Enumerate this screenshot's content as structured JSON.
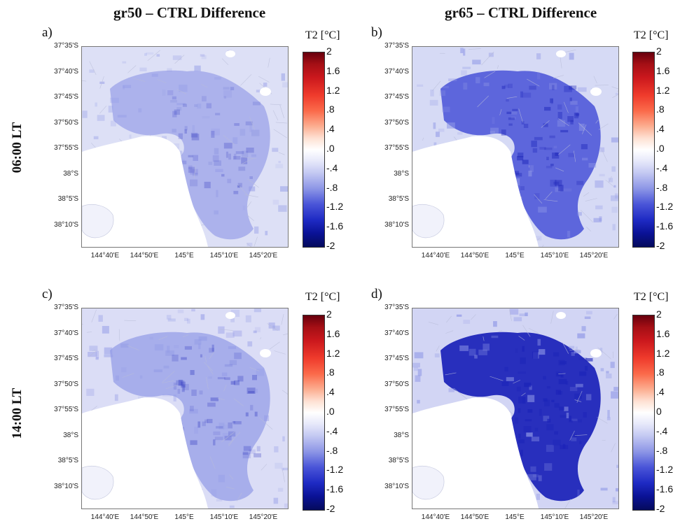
{
  "figure": {
    "columns": [
      {
        "title": "gr50 – CTRL Difference"
      },
      {
        "title": "gr65 – CTRL Difference"
      }
    ],
    "rows": [
      {
        "label": "06:00 LT"
      },
      {
        "label": "14:00 LT"
      }
    ],
    "panels": [
      {
        "letter": "a)",
        "intensity": 0.35,
        "colorbar": {
          "title": "T2 [°C]",
          "ticks": [
            "2",
            "1.6",
            "1.2",
            ".8",
            ".4",
            ".0",
            "-.4",
            "-.8",
            "-1.2",
            "-1.6",
            "-2"
          ]
        }
      },
      {
        "letter": "b)",
        "intensity": 0.7,
        "colorbar": {
          "title": "T2 [°C]",
          "ticks": [
            "2",
            "1.6",
            "1.2",
            ".8",
            ".4",
            ".0",
            "-.4",
            "-.8",
            "-1.2",
            "-1.6",
            "-2"
          ]
        }
      },
      {
        "letter": "c)",
        "intensity": 0.45,
        "colorbar": {
          "title": "T2 [°C]",
          "ticks": [
            "2",
            "1.6",
            "1.2",
            ".8",
            ".4",
            ".0",
            "-.4",
            "-.8",
            "-1.2",
            "-1.6",
            "-2"
          ]
        }
      },
      {
        "letter": "d)",
        "intensity": 0.95,
        "colorbar": {
          "title": "T2 [°C]",
          "ticks": [
            "2",
            "1.6",
            "1.2",
            ".8",
            ".4",
            "0",
            "-.4",
            "-.8",
            "-1.2",
            "-1.6",
            "-2"
          ]
        }
      }
    ],
    "y_axis_labels": [
      "37°35'S",
      "37°40'S",
      "37°45'S",
      "37°50'S",
      "37°55'S",
      "38°S",
      "38°5'S",
      "38°10'S"
    ],
    "x_axis_labels": [
      "144°40'E",
      "144°50'E",
      "145°E",
      "145°10'E",
      "145°20'E"
    ],
    "colors": {
      "bay": "#ffffff",
      "land_background": "#f1f2fb",
      "light_blue": "#c9cdf2",
      "mid_blue": "#8f97e6",
      "dark_blue": "#3f49d6",
      "deep_blue": "#1a22b8"
    }
  }
}
